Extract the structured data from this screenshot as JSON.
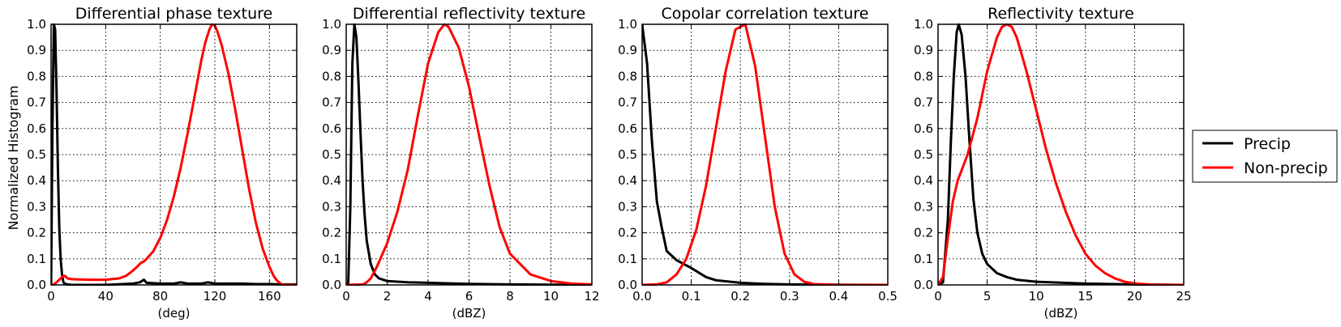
{
  "figure": {
    "ylabel": "Normalized Histogram",
    "legend": {
      "placement": "right",
      "entries": [
        {
          "name": "Precip",
          "color": "#000000"
        },
        {
          "name": "Non-precip",
          "color": "#ff0000"
        }
      ]
    }
  },
  "chart_data": [
    {
      "type": "line",
      "title": "Differential phase texture",
      "xlabel": "(deg)",
      "ylabel": "Normalized Histogram",
      "xlim": [
        0,
        180
      ],
      "ylim": [
        0,
        1.0
      ],
      "xticks": [
        "0",
        "40",
        "80",
        "120",
        "160"
      ],
      "xtick_values": [
        0,
        40,
        80,
        120,
        160
      ],
      "yticks": [
        "0.0",
        "0.1",
        "0.2",
        "0.3",
        "0.4",
        "0.5",
        "0.6",
        "0.7",
        "0.8",
        "0.9",
        "1.0"
      ],
      "grid": true,
      "series": [
        {
          "name": "Precip",
          "color": "#000000",
          "x": [
            0,
            1,
            2,
            3,
            4,
            5,
            6,
            7,
            8,
            9,
            10,
            12,
            15,
            20,
            40,
            60,
            65,
            68,
            70,
            80,
            90,
            95,
            100,
            110,
            115,
            120,
            130,
            140,
            150,
            160,
            170,
            180
          ],
          "y": [
            0.0,
            0.6,
            1.0,
            0.98,
            0.75,
            0.45,
            0.22,
            0.1,
            0.04,
            0.01,
            0.005,
            0.002,
            0.0,
            0.0,
            0.0,
            0.005,
            0.01,
            0.02,
            0.008,
            0.005,
            0.005,
            0.01,
            0.005,
            0.005,
            0.01,
            0.005,
            0.005,
            0.005,
            0.003,
            0.003,
            0.002,
            0.002
          ]
        },
        {
          "name": "Non-precip",
          "color": "#ff0000",
          "x": [
            0,
            2,
            4,
            6,
            8,
            10,
            12,
            15,
            20,
            30,
            40,
            50,
            55,
            60,
            63,
            66,
            68,
            70,
            75,
            80,
            85,
            90,
            95,
            100,
            105,
            110,
            113,
            116,
            118,
            120,
            122,
            125,
            130,
            135,
            140,
            145,
            150,
            155,
            160,
            163,
            165,
            168,
            170,
            175,
            180
          ],
          "y": [
            0.0,
            0.002,
            0.01,
            0.02,
            0.03,
            0.035,
            0.025,
            0.022,
            0.021,
            0.02,
            0.02,
            0.025,
            0.035,
            0.055,
            0.07,
            0.085,
            0.09,
            0.1,
            0.13,
            0.18,
            0.25,
            0.34,
            0.45,
            0.58,
            0.72,
            0.86,
            0.93,
            0.98,
            1.0,
            0.995,
            0.97,
            0.92,
            0.81,
            0.67,
            0.52,
            0.37,
            0.24,
            0.14,
            0.07,
            0.035,
            0.02,
            0.005,
            0.0,
            0.0,
            0.0
          ]
        }
      ]
    },
    {
      "type": "line",
      "title": "Differential reflectivity texture",
      "xlabel": "(dBZ)",
      "xlim": [
        0,
        12
      ],
      "ylim": [
        0,
        1.0
      ],
      "xticks": [
        "0",
        "2",
        "4",
        "6",
        "8",
        "10",
        "12"
      ],
      "xtick_values": [
        0,
        2,
        4,
        6,
        8,
        10,
        12
      ],
      "yticks": [
        "0.0",
        "0.1",
        "0.2",
        "0.3",
        "0.4",
        "0.5",
        "0.6",
        "0.7",
        "0.8",
        "0.9",
        "1.0"
      ],
      "grid": true,
      "series": [
        {
          "name": "Precip",
          "color": "#000000",
          "x": [
            0,
            0.1,
            0.2,
            0.3,
            0.4,
            0.5,
            0.6,
            0.7,
            0.8,
            0.9,
            1.0,
            1.2,
            1.4,
            1.6,
            2.0,
            3.0,
            4.0,
            5.0,
            6.0,
            8.0,
            10.0,
            12.0
          ],
          "y": [
            0.0,
            0.005,
            0.3,
            0.85,
            1.0,
            0.95,
            0.78,
            0.58,
            0.4,
            0.27,
            0.17,
            0.08,
            0.04,
            0.025,
            0.015,
            0.01,
            0.008,
            0.006,
            0.004,
            0.002,
            0.001,
            0.0
          ]
        },
        {
          "name": "Non-precip",
          "color": "#ff0000",
          "x": [
            0,
            0.8,
            1.0,
            1.2,
            1.5,
            2.0,
            2.5,
            3.0,
            3.5,
            4.0,
            4.5,
            4.8,
            5.0,
            5.5,
            6.0,
            6.5,
            7.0,
            7.5,
            8.0,
            9.0,
            10.0,
            11.0,
            12.0
          ],
          "y": [
            0.0,
            0.002,
            0.01,
            0.025,
            0.07,
            0.16,
            0.28,
            0.44,
            0.65,
            0.85,
            0.97,
            1.0,
            0.99,
            0.91,
            0.76,
            0.57,
            0.38,
            0.22,
            0.12,
            0.04,
            0.015,
            0.005,
            0.002
          ]
        }
      ]
    },
    {
      "type": "line",
      "title": "Copolar correlation texture",
      "xlabel": "",
      "xlim": [
        0,
        0.5
      ],
      "ylim": [
        0,
        1.0
      ],
      "xticks": [
        "0.0",
        "0.1",
        "0.2",
        "0.3",
        "0.4",
        "0.5"
      ],
      "xtick_values": [
        0,
        0.1,
        0.2,
        0.3,
        0.4,
        0.5
      ],
      "yticks": [
        "0.0",
        "0.1",
        "0.2",
        "0.3",
        "0.4",
        "0.5",
        "0.6",
        "0.7",
        "0.8",
        "0.9",
        "1.0"
      ],
      "grid": true,
      "series": [
        {
          "name": "Precip",
          "color": "#000000",
          "x": [
            0.0,
            0.01,
            0.02,
            0.03,
            0.04,
            0.05,
            0.07,
            0.1,
            0.13,
            0.15,
            0.2,
            0.25,
            0.3,
            0.4,
            0.5
          ],
          "y": [
            1.0,
            0.85,
            0.55,
            0.32,
            0.22,
            0.13,
            0.095,
            0.065,
            0.03,
            0.018,
            0.008,
            0.004,
            0.002,
            0.001,
            0.0
          ],
          "clip": true
        },
        {
          "name": "Non-precip",
          "color": "#ff0000",
          "x": [
            0.0,
            0.03,
            0.05,
            0.07,
            0.09,
            0.11,
            0.13,
            0.15,
            0.17,
            0.19,
            0.2,
            0.21,
            0.23,
            0.25,
            0.27,
            0.29,
            0.31,
            0.33,
            0.35,
            0.4,
            0.5
          ],
          "y": [
            0.0,
            0.002,
            0.01,
            0.04,
            0.1,
            0.21,
            0.38,
            0.6,
            0.82,
            0.98,
            0.99,
            1.0,
            0.84,
            0.57,
            0.3,
            0.12,
            0.04,
            0.012,
            0.003,
            0.0,
            0.0
          ]
        }
      ]
    },
    {
      "type": "line",
      "title": "Reflectivity texture",
      "xlabel": "(dBZ)",
      "xlim": [
        0,
        25
      ],
      "ylim": [
        0,
        1.0
      ],
      "xticks": [
        "0",
        "5",
        "10",
        "15",
        "20",
        "25"
      ],
      "xtick_values": [
        0,
        5,
        10,
        15,
        20,
        25
      ],
      "yticks": [
        "0.0",
        "0.1",
        "0.2",
        "0.3",
        "0.4",
        "0.5",
        "0.6",
        "0.7",
        "0.8",
        "0.9",
        "1.0"
      ],
      "grid": true,
      "series": [
        {
          "name": "Precip",
          "color": "#000000",
          "x": [
            0,
            0.5,
            1.0,
            1.3,
            1.6,
            1.9,
            2.1,
            2.4,
            2.8,
            3.2,
            3.6,
            4.0,
            4.5,
            5.0,
            6.0,
            7.0,
            8.0,
            10.0,
            15.0,
            20.0,
            25.0
          ],
          "y": [
            0.0,
            0.01,
            0.25,
            0.55,
            0.8,
            0.97,
            1.0,
            0.96,
            0.8,
            0.55,
            0.33,
            0.2,
            0.12,
            0.08,
            0.045,
            0.03,
            0.02,
            0.012,
            0.005,
            0.002,
            0.0
          ]
        },
        {
          "name": "Non-precip",
          "color": "#ff0000",
          "x": [
            0,
            0.5,
            1.0,
            1.5,
            2.0,
            3.0,
            4.0,
            5.0,
            6.0,
            6.5,
            7.0,
            7.5,
            8.0,
            9.0,
            10.0,
            11.0,
            12.0,
            13.0,
            14.0,
            15.0,
            16.0,
            17.0,
            18.0,
            19.0,
            20.0,
            21.0,
            22.0,
            25.0
          ],
          "y": [
            0.0,
            0.03,
            0.18,
            0.32,
            0.4,
            0.5,
            0.64,
            0.82,
            0.95,
            0.99,
            1.0,
            0.99,
            0.95,
            0.82,
            0.67,
            0.52,
            0.39,
            0.28,
            0.19,
            0.12,
            0.075,
            0.045,
            0.025,
            0.012,
            0.006,
            0.003,
            0.001,
            0.0
          ]
        }
      ]
    }
  ]
}
